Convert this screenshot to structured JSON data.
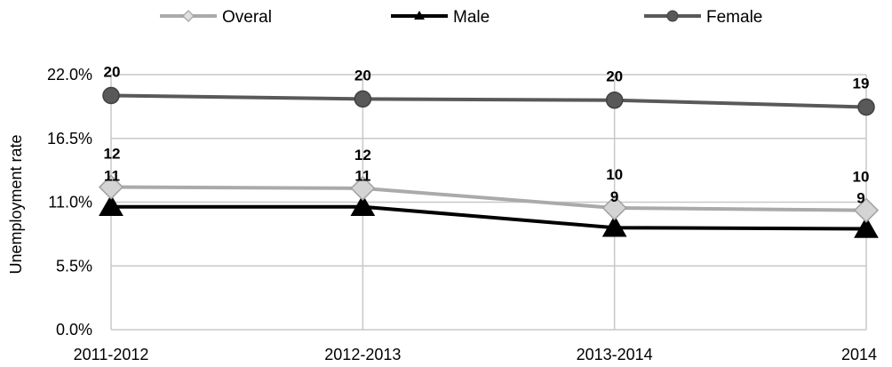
{
  "chart_data": {
    "type": "line",
    "categories": [
      "2011-2012",
      "2012-2013",
      "2013-2014",
      "2014"
    ],
    "ylabel": "Unemployment rate",
    "ylim": [
      0,
      22
    ],
    "yticks": [
      "0.0%",
      "5.5%",
      "11.0%",
      "16.5%",
      "22.0%"
    ],
    "ytick_values": [
      0,
      5.5,
      11,
      16.5,
      22
    ],
    "grid": true,
    "legend_position": "top",
    "series": [
      {
        "name": "Overal",
        "values": [
          12.3,
          12.2,
          10.5,
          10.3
        ],
        "labels": [
          "12",
          "12",
          "10",
          "10"
        ],
        "color": "#aaaaaa",
        "marker": "diamond"
      },
      {
        "name": "Male",
        "values": [
          10.6,
          10.6,
          8.8,
          8.7
        ],
        "labels": [
          "11",
          "11",
          "9",
          "9"
        ],
        "color": "#000000",
        "marker": "triangle"
      },
      {
        "name": "Female",
        "values": [
          20.2,
          19.9,
          19.8,
          19.2
        ],
        "labels": [
          "20",
          "20",
          "20",
          "19"
        ],
        "color": "#595959",
        "marker": "circle"
      }
    ]
  }
}
